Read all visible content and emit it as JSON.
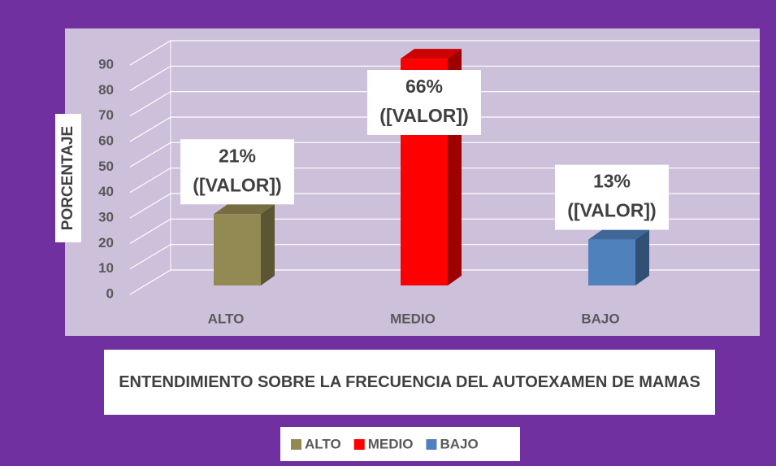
{
  "chart_data": {
    "type": "bar3d",
    "title": "ENTENDIMIENTO SOBRE LA FRECUENCIA DEL AUTOEXAMEN DE MAMAS",
    "y_label": "PORCENTAJE",
    "categories": [
      "ALTO",
      "MEDIO",
      "BAJO"
    ],
    "values": [
      28,
      89,
      18
    ],
    "value_labels": [
      [
        "21%",
        "([VALOR])"
      ],
      [
        "66%",
        "([VALOR])"
      ],
      [
        "13%",
        "([VALOR])"
      ]
    ],
    "colors": [
      "#938953",
      "#ff0000",
      "#4f81bd"
    ],
    "ylim": [
      0,
      90
    ],
    "yticks": [
      0,
      10,
      20,
      30,
      40,
      50,
      60,
      70,
      80,
      90
    ],
    "grid": true,
    "legend": "bottom"
  }
}
